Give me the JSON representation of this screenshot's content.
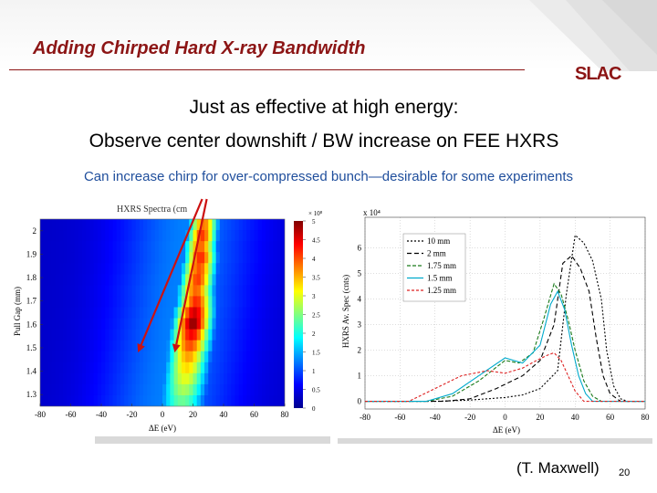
{
  "slide": {
    "title": "Adding Chirped Hard X-ray Bandwidth",
    "logo": "SLAC",
    "line1": "Just as effective at high energy:",
    "line2": "Observe center downshift / BW increase on FEE HXRS",
    "line3": "Can increase chirp for over-compressed bunch—desirable for some experiments",
    "credit": "(T. Maxwell)",
    "page_number": "20",
    "colors": {
      "title": "#8c1515",
      "subtitle": "#1f4e9c",
      "arrow": "#cc1111"
    }
  },
  "chart_data": [
    {
      "type": "heatmap",
      "title": "HXRS Spectra (cm",
      "xlabel": "ΔE (eV)",
      "ylabel": "Pull Gap (mm)",
      "x_ticks": [
        "-80",
        "-60",
        "-40",
        "-20",
        "0",
        "20",
        "40",
        "60",
        "80"
      ],
      "y_ticks": [
        "2",
        "1.9",
        "1.8",
        "1.7",
        "1.6",
        "1.5",
        "1.4",
        "1.3"
      ],
      "xlim": [
        -80,
        80
      ],
      "ylim": [
        1.25,
        2.05
      ],
      "colorbar": {
        "exponent": "× 10⁸",
        "ticks": [
          "5",
          "4.5",
          "4",
          "3.5",
          "3",
          "2.5",
          "2",
          "1.5",
          "1",
          "0.5",
          "0"
        ],
        "range": [
          0,
          5
        ]
      },
      "rows": [
        {
          "gap": 2.05,
          "center": 27,
          "width": 14,
          "peak": 3.8
        },
        {
          "gap": 2.0,
          "center": 26,
          "width": 14,
          "peak": 4.1
        },
        {
          "gap": 1.95,
          "center": 25,
          "width": 15,
          "peak": 3.9
        },
        {
          "gap": 1.9,
          "center": 25,
          "width": 15,
          "peak": 4.2
        },
        {
          "gap": 1.85,
          "center": 24,
          "width": 16,
          "peak": 4.0
        },
        {
          "gap": 1.8,
          "center": 23,
          "width": 16,
          "peak": 4.1
        },
        {
          "gap": 1.75,
          "center": 22,
          "width": 17,
          "peak": 3.9
        },
        {
          "gap": 1.7,
          "center": 22,
          "width": 17,
          "peak": 4.2
        },
        {
          "gap": 1.65,
          "center": 21,
          "width": 18,
          "peak": 4.6
        },
        {
          "gap": 1.6,
          "center": 20,
          "width": 18,
          "peak": 4.9
        },
        {
          "gap": 1.55,
          "center": 19,
          "width": 19,
          "peak": 4.4
        },
        {
          "gap": 1.5,
          "center": 18,
          "width": 20,
          "peak": 4.0
        },
        {
          "gap": 1.45,
          "center": 17,
          "width": 20,
          "peak": 3.6
        },
        {
          "gap": 1.4,
          "center": 16,
          "width": 21,
          "peak": 3.3
        },
        {
          "gap": 1.35,
          "center": 15,
          "width": 22,
          "peak": 3.0
        },
        {
          "gap": 1.3,
          "center": 14,
          "width": 23,
          "peak": 2.7
        },
        {
          "gap": 1.25,
          "center": 13,
          "width": 24,
          "peak": 2.4
        }
      ],
      "arrows": [
        {
          "from": [
            26,
            2.05
          ],
          "to": [
            -16,
            1.48
          ]
        },
        {
          "from": [
            29,
            2.05
          ],
          "to": [
            8,
            1.48
          ]
        }
      ]
    },
    {
      "type": "line",
      "xlabel": "ΔE (eV)",
      "ylabel": "HXRS Av. Spec (cnts)",
      "y_exponent": "x 10⁴",
      "x_ticks": [
        "-80",
        "-60",
        "-40",
        "-20",
        "0",
        "20",
        "40",
        "60",
        "80"
      ],
      "y_ticks": [
        "0",
        "1",
        "2",
        "3",
        "4",
        "5",
        "6"
      ],
      "xlim": [
        -80,
        80
      ],
      "ylim": [
        -0.3,
        7.2
      ],
      "legend_position": "top-left",
      "series": [
        {
          "name": "10 mm",
          "color": "#000000",
          "dash": "2,2",
          "x": [
            -80,
            -40,
            -20,
            0,
            10,
            20,
            30,
            35,
            40,
            45,
            50,
            55,
            58,
            62,
            66,
            70,
            80
          ],
          "y": [
            0,
            0,
            0.05,
            0.15,
            0.25,
            0.5,
            1.2,
            4.2,
            6.5,
            6.2,
            5.5,
            4.0,
            2.0,
            0.6,
            0.1,
            0,
            0
          ]
        },
        {
          "name": "2 mm",
          "color": "#000000",
          "dash": "5,3",
          "x": [
            -80,
            -35,
            -20,
            -5,
            10,
            20,
            28,
            33,
            38,
            43,
            48,
            52,
            56,
            60,
            66,
            80
          ],
          "y": [
            0,
            0,
            0.1,
            0.5,
            1.0,
            1.6,
            3.0,
            5.4,
            5.7,
            5.2,
            4.3,
            2.5,
            1.0,
            0.3,
            0,
            0
          ]
        },
        {
          "name": "1.75 mm",
          "color": "#1a7a1a",
          "dash": "4,2",
          "x": [
            -80,
            -45,
            -30,
            -15,
            0,
            8,
            16,
            22,
            28,
            32,
            36,
            40,
            45,
            50,
            55,
            80
          ],
          "y": [
            0,
            0,
            0.2,
            0.8,
            1.6,
            1.5,
            1.9,
            3.2,
            4.6,
            4.2,
            3.2,
            2.0,
            0.8,
            0.2,
            0,
            0
          ]
        },
        {
          "name": "1.5 mm",
          "color": "#00aacc",
          "dash": "",
          "x": [
            -80,
            -45,
            -30,
            -15,
            0,
            10,
            20,
            26,
            30,
            34,
            38,
            42,
            46,
            50,
            80
          ],
          "y": [
            0,
            0,
            0.3,
            1.0,
            1.7,
            1.5,
            2.2,
            3.8,
            4.3,
            3.6,
            2.2,
            1.0,
            0.3,
            0,
            0
          ]
        },
        {
          "name": "1.25 mm",
          "color": "#dd2222",
          "dash": "3,2",
          "x": [
            -80,
            -55,
            -40,
            -25,
            -10,
            0,
            10,
            18,
            24,
            28,
            32,
            36,
            40,
            45,
            80
          ],
          "y": [
            0,
            0,
            0.5,
            1.0,
            1.2,
            1.1,
            1.3,
            1.6,
            1.8,
            1.9,
            1.6,
            1.0,
            0.4,
            0,
            0
          ]
        }
      ]
    }
  ]
}
